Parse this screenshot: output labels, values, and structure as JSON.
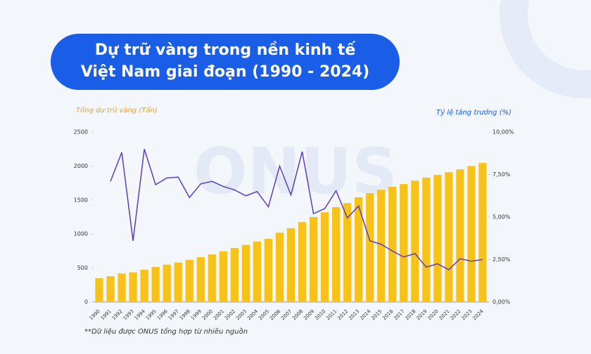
{
  "chart_data": {
    "type": "bar_line",
    "title": [
      "Dự trữ vàng trong nền kinh tế",
      "Việt Nam giai đoạn (1990 - 2024)"
    ],
    "y_label": "Tổng dự trữ vàng (Tấn)",
    "y2_label": "Tỷ lệ tăng trưởng (%)",
    "footnote": "**Dữ liệu được ONUS tổng hợp từ nhiều nguồn",
    "watermark": "ONUS",
    "categories": [
      "1990",
      "1991",
      "1992",
      "1993",
      "1994",
      "1995",
      "1996",
      "1997",
      "1998",
      "1999",
      "2000",
      "2001",
      "2002",
      "2003",
      "2004",
      "2005",
      "2006",
      "2007",
      "2008",
      "2009",
      "2010",
      "2011",
      "2012",
      "2013",
      "2014",
      "2015",
      "2016",
      "2017",
      "2018",
      "2019",
      "2020",
      "2021",
      "2022",
      "2023",
      "2024"
    ],
    "series": [
      {
        "name": "Tổng dự trữ vàng (Tấn)",
        "type": "bar",
        "color": "#f7c21a",
        "values": [
          350,
          380,
          420,
          435,
          475,
          515,
          550,
          580,
          620,
          660,
          700,
          745,
          795,
          840,
          890,
          930,
          1020,
          1085,
          1175,
          1250,
          1320,
          1395,
          1455,
          1540,
          1600,
          1650,
          1695,
          1735,
          1785,
          1830,
          1870,
          1910,
          1950,
          2000,
          2045
        ]
      },
      {
        "name": "Tỷ lệ tăng trưởng (%)",
        "type": "line",
        "axis": "y2",
        "color": "#5a3fc0",
        "values": [
          null,
          7.1,
          8.8,
          3.6,
          9.0,
          6.9,
          7.3,
          7.35,
          6.15,
          6.95,
          7.1,
          6.8,
          6.6,
          6.25,
          6.5,
          5.6,
          8.0,
          6.3,
          8.85,
          5.2,
          5.5,
          6.55,
          4.95,
          5.65,
          3.6,
          3.4,
          3.0,
          2.65,
          2.85,
          2.05,
          2.25,
          1.9,
          2.55,
          2.4,
          2.5
        ]
      }
    ],
    "ylim": [
      0,
      2500
    ],
    "yticks": [
      0,
      500,
      1000,
      1500,
      2000,
      2500
    ],
    "y2lim": [
      0,
      10
    ],
    "y2ticks": [
      {
        "value": 0,
        "label": "0,00%"
      },
      {
        "value": 2.5,
        "label": "2,50%"
      },
      {
        "value": 5,
        "label": "5,00%"
      },
      {
        "value": 7.5,
        "label": "7,50%"
      },
      {
        "value": 10,
        "label": "10,00%"
      }
    ]
  }
}
